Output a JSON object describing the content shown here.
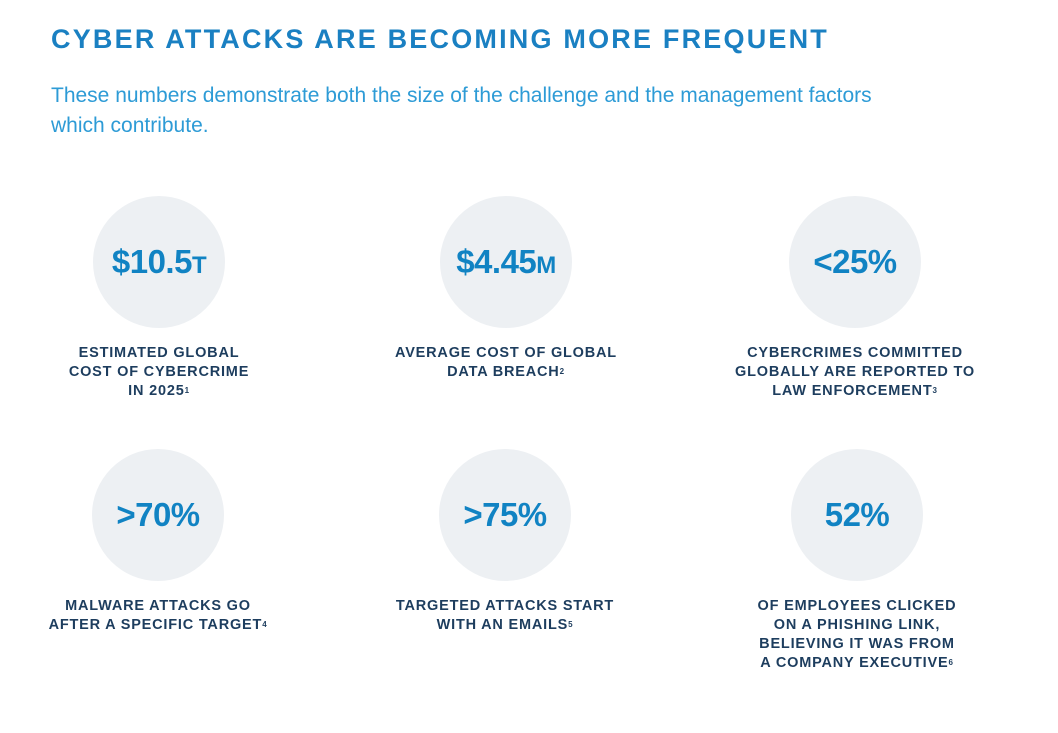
{
  "title": "CYBER ATTACKS ARE BECOMING MORE FREQUENT",
  "subtitle": "These numbers demonstrate both the size of the challenge and the management factors which contribute.",
  "stats": [
    {
      "value": "$10.5",
      "unit": "T",
      "lines": [
        "ESTIMATED GLOBAL",
        "COST OF CYBERCRIME",
        "IN 2025"
      ],
      "footnote": "1"
    },
    {
      "value": "$4.45",
      "unit": "M",
      "lines": [
        "AVERAGE COST OF GLOBAL",
        "DATA BREACH"
      ],
      "footnote": "2"
    },
    {
      "value": "<25%",
      "unit": "",
      "lines": [
        "CYBERCRIMES COMMITTED",
        "GLOBALLY ARE REPORTED TO",
        "LAW ENFORCEMENT"
      ],
      "footnote": "3"
    },
    {
      "value": ">70%",
      "unit": "",
      "lines": [
        "MALWARE ATTACKS GO",
        "AFTER A SPECIFIC TARGET"
      ],
      "footnote": "4"
    },
    {
      "value": ">75%",
      "unit": "",
      "lines": [
        "TARGETED ATTACKS START",
        "WITH AN EMAILS"
      ],
      "footnote": "5"
    },
    {
      "value": "52%",
      "unit": "",
      "lines": [
        "OF EMPLOYEES CLICKED",
        "ON A PHISHING LINK,",
        "BELIEVING IT WAS FROM",
        "A COMPANY EXECUTIVE"
      ],
      "footnote": "6"
    }
  ],
  "colors": {
    "accent": "#1a80c2",
    "label": "#1d3d5e",
    "circle": "#edf0f3"
  }
}
